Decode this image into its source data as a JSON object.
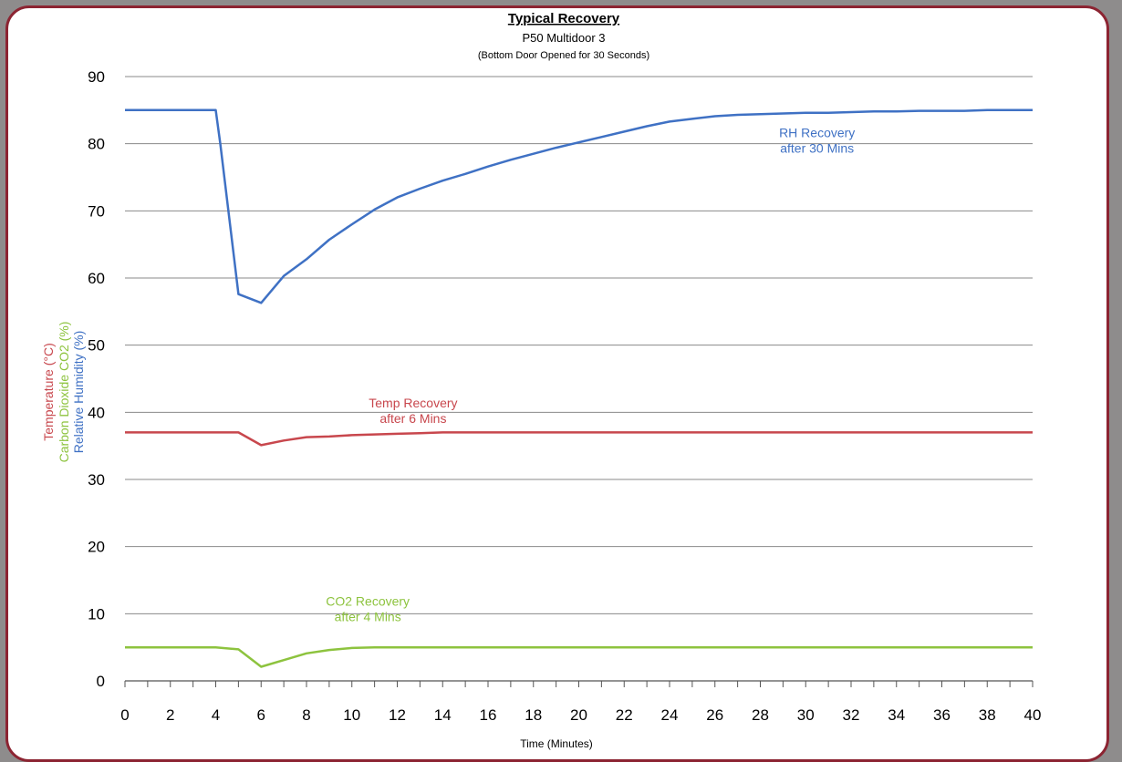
{
  "chart_data": {
    "type": "line",
    "title": "Typical Recovery",
    "subtitle": "P50 Multidoor 3",
    "subtitle2": "(Bottom Door Opened for 30 Seconds)",
    "xlabel": "Time (Minutes)",
    "ylabels": [
      {
        "text": "Temperature (°C)",
        "color": "#c8474d"
      },
      {
        "text": "Carbon Dioxide CO2 (%)",
        "color": "#8dc33e"
      },
      {
        "text": "Relative Humidity (%)",
        "color": "#3f71c4"
      }
    ],
    "xlim": [
      0,
      40
    ],
    "ylim": [
      0,
      90
    ],
    "xticks": [
      "0",
      "2",
      "4",
      "6",
      "8",
      "10",
      "12",
      "14",
      "16",
      "18",
      "20",
      "22",
      "24",
      "26",
      "28",
      "30",
      "32",
      "34",
      "36",
      "38",
      "40"
    ],
    "yticks": [
      "0",
      "10",
      "20",
      "30",
      "40",
      "50",
      "60",
      "70",
      "80",
      "90"
    ],
    "grid": true,
    "series": [
      {
        "name": "Relative Humidity",
        "color": "#3f71c4",
        "x": [
          0,
          1,
          2,
          3,
          4,
          4.2,
          5,
          6,
          7,
          8,
          9,
          10,
          11,
          12,
          13,
          14,
          15,
          16,
          17,
          18,
          19,
          20,
          21,
          22,
          23,
          24,
          25,
          26,
          27,
          28,
          29,
          30,
          31,
          32,
          33,
          34,
          35,
          36,
          37,
          38,
          39,
          40
        ],
        "y": [
          85,
          85,
          85,
          85,
          85,
          80,
          57.6,
          56.3,
          60.3,
          62.8,
          65.7,
          68,
          70.2,
          72,
          73.3,
          74.5,
          75.5,
          76.6,
          77.6,
          78.5,
          79.4,
          80.2,
          81,
          81.8,
          82.6,
          83.3,
          83.7,
          84.1,
          84.3,
          84.4,
          84.5,
          84.6,
          84.6,
          84.7,
          84.8,
          84.8,
          84.9,
          84.9,
          84.9,
          85,
          85,
          85
        ]
      },
      {
        "name": "Temperature",
        "color": "#c8474d",
        "x": [
          0,
          1,
          2,
          3,
          4,
          5,
          6,
          7,
          8,
          9,
          10,
          11,
          12,
          13,
          14,
          16,
          18,
          20,
          25,
          30,
          35,
          40
        ],
        "y": [
          37,
          37,
          37,
          37,
          37,
          37,
          35.1,
          35.8,
          36.3,
          36.4,
          36.6,
          36.7,
          36.8,
          36.9,
          37,
          37,
          37,
          37,
          37,
          37,
          37,
          37
        ]
      },
      {
        "name": "CO2",
        "color": "#8dc33e",
        "x": [
          0,
          1,
          2,
          3,
          4,
          5,
          6,
          7,
          8,
          9,
          10,
          11,
          12,
          14,
          16,
          20,
          25,
          30,
          35,
          40
        ],
        "y": [
          5,
          5,
          5,
          5,
          5,
          4.7,
          2.1,
          3.1,
          4.1,
          4.6,
          4.9,
          5,
          5,
          5,
          5,
          5,
          5,
          5,
          5,
          5
        ]
      }
    ],
    "annotations": [
      {
        "lines": [
          "RH Recovery",
          "after 30 Mins"
        ],
        "x": 30.5,
        "y": 81,
        "color": "#3f71c4"
      },
      {
        "lines": [
          "Temp Recovery",
          "after 6 Mins"
        ],
        "x": 12.7,
        "y": 40.7,
        "color": "#c8474d"
      },
      {
        "lines": [
          "CO2 Recovery",
          "after 4 Mins"
        ],
        "x": 10.7,
        "y": 11.2,
        "color": "#8dc33e"
      }
    ]
  }
}
